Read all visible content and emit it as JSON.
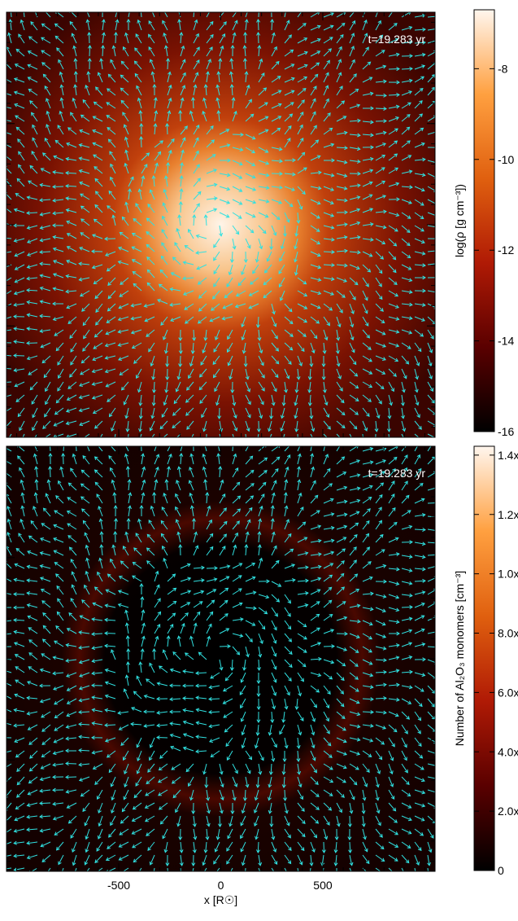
{
  "chart_data": [
    {
      "type": "image",
      "annotation": "t=19.283 yr",
      "colorbar_label": "log(ρ [g cm⁻³])",
      "clim": [
        -16,
        -6.7
      ],
      "cticks": [
        -16,
        -14,
        -12,
        -10,
        -8
      ],
      "colormap": [
        "#000000",
        "#5a0000",
        "#b01a05",
        "#e0600f",
        "#ffa040",
        "#fff6ee"
      ],
      "xlim": [
        -1050,
        1050
      ],
      "ylim": [
        -1050,
        1050
      ],
      "xticks": [
        -500,
        0,
        500
      ],
      "yticks": [
        -500,
        0,
        500
      ],
      "minor_step": 100,
      "show_xtick_labels": false
    },
    {
      "type": "image",
      "annotation": "t=19.283 yr",
      "colorbar_label": "Number of Al₂O₃ monomers [cm⁻³]",
      "clim": [
        0,
        14.3
      ],
      "cticks": [
        0,
        {
          "value": 2,
          "label": "2.0x"
        },
        {
          "value": 4,
          "label": "4.0x"
        },
        {
          "value": 6,
          "label": "6.0x"
        },
        {
          "value": 8,
          "label": "8.0x"
        },
        {
          "value": 10,
          "label": "1.0x"
        },
        {
          "value": 12,
          "label": "1.2x"
        },
        {
          "value": 14,
          "label": "1.4x"
        }
      ],
      "colormap": [
        "#000000",
        "#5a0000",
        "#b01a05",
        "#e0600f",
        "#ffa040",
        "#fff6ee"
      ],
      "xlim": [
        -1050,
        1050
      ],
      "ylim": [
        -1050,
        1050
      ],
      "xticks": [
        -500,
        0,
        500
      ],
      "yticks": [
        -500,
        0,
        500
      ],
      "minor_step": 100,
      "show_xtick_labels": true,
      "xlabel": "x [R☉]"
    }
  ]
}
